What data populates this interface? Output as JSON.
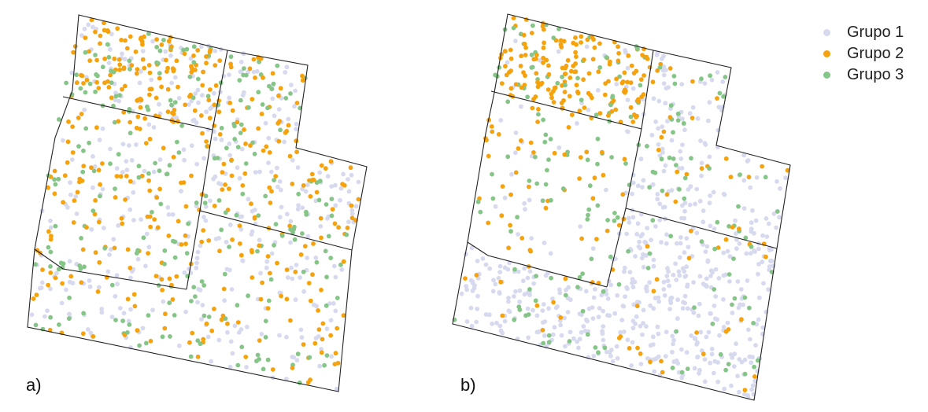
{
  "panels": [
    {
      "label": "a)"
    },
    {
      "label": "b)"
    }
  ],
  "legend": [
    {
      "label": "Grupo 1",
      "color": "#d7d9ef"
    },
    {
      "label": "Grupo 2",
      "color": "#f5a20c"
    },
    {
      "label": "Grupo 3",
      "color": "#86c588"
    }
  ],
  "style": {
    "boundary_color": "#222222"
  }
}
